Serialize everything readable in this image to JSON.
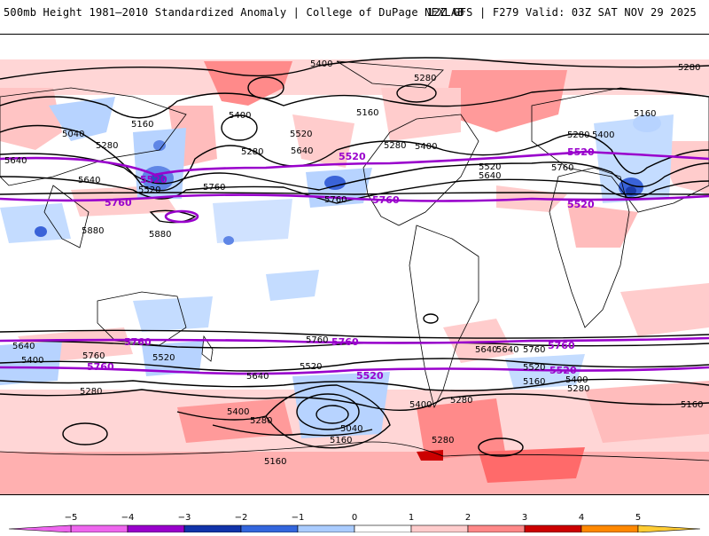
{
  "header": {
    "title_left": "500mb Height 1981–2010 Standardized Anomaly | College of DuPage NEXLAB",
    "title_right": "12Z GFS | F279 Valid: 03Z SAT NOV 29 2025"
  },
  "map": {
    "contour_labels_black": [
      "5400",
      "5280",
      "5280",
      "5160",
      "5040",
      "5280",
      "5400",
      "5160",
      "5640",
      "5520",
      "5760",
      "5640",
      "5280",
      "5520",
      "5280",
      "5400",
      "5160",
      "5280",
      "5400",
      "5520",
      "5640",
      "5760",
      "5640",
      "5880",
      "5880",
      "5760",
      "5280",
      "5400",
      "5640",
      "5760",
      "5400",
      "5520",
      "5280",
      "5640",
      "5520",
      "5400",
      "5040",
      "5160",
      "5280",
      "5160",
      "5640",
      "5760",
      "5520",
      "5400",
      "5280",
      "5160",
      "5280",
      "5160",
      "5760",
      "5640"
    ],
    "contour_labels_purple": [
      "5520",
      "5760",
      "5520",
      "5760",
      "5520",
      "5760",
      "5760",
      "5760",
      "5760",
      "5520",
      "5520",
      "5520"
    ]
  },
  "colorbar": {
    "ticks": [
      "−5",
      "−4",
      "−3",
      "−2",
      "−1",
      "0",
      "1",
      "2",
      "3",
      "4",
      "5"
    ],
    "colors": [
      "#ee66ee",
      "#9900cc",
      "#1133aa",
      "#3366dd",
      "#aaccff",
      "#ffffff",
      "#ffcccc",
      "#ff8888",
      "#cc0000",
      "#ff8800",
      "#ffcc33"
    ]
  }
}
